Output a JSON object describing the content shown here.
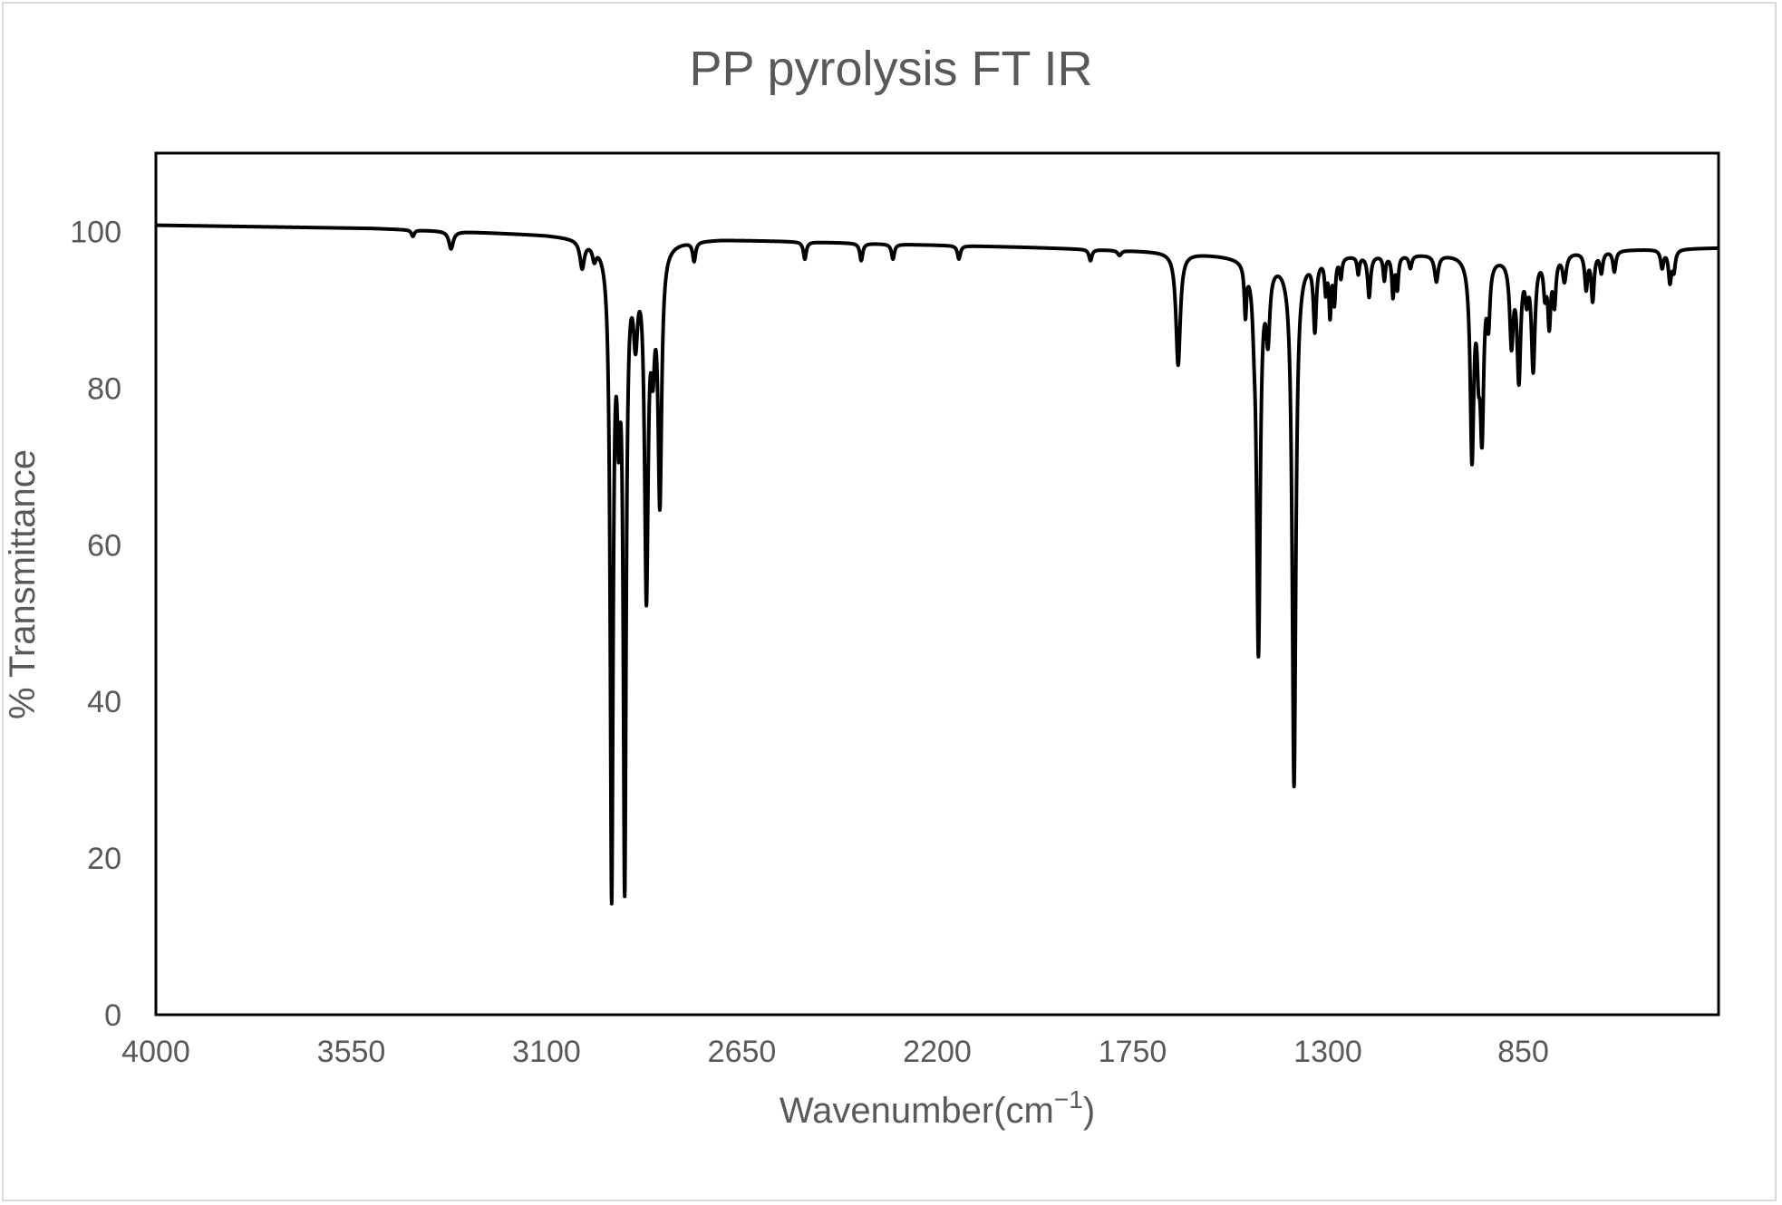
{
  "chart_data": {
    "type": "line",
    "title": "PP pyrolysis FT IR",
    "xlabel": "Wavenumber(cm",
    "xlabel_sup": "−1",
    "xlabel_close": ")",
    "ylabel": "% Transmittance",
    "xlim": [
      4000,
      400
    ],
    "ylim": [
      0,
      110
    ],
    "x_reversed": true,
    "x_ticks": [
      4000,
      3550,
      3100,
      2650,
      2200,
      1750,
      1300,
      850
    ],
    "x_tick_labels": [
      "4000",
      "3550",
      "3100",
      "2650",
      "2200",
      "1750",
      "1300",
      "850"
    ],
    "y_ticks": [
      0,
      20,
      40,
      60,
      80,
      100
    ],
    "y_tick_labels": [
      "0",
      "20",
      "40",
      "60",
      "80",
      "100"
    ],
    "grid": false,
    "line_color": "#000000",
    "baseline": [
      [
        4000,
        100.8
      ],
      [
        3500,
        100.4
      ],
      [
        3100,
        99.6
      ],
      [
        2900,
        98.8
      ],
      [
        2700,
        99.0
      ],
      [
        2300,
        98.4
      ],
      [
        2000,
        98.0
      ],
      [
        1650,
        97.4
      ],
      [
        1400,
        96.5
      ],
      [
        1300,
        97.0
      ],
      [
        1000,
        97.2
      ],
      [
        900,
        97.0
      ],
      [
        700,
        97.6
      ],
      [
        500,
        97.8
      ],
      [
        400,
        97.9
      ]
    ],
    "peaks": [
      {
        "x": 3408,
        "y": 99.4,
        "w": 4
      },
      {
        "x": 3320,
        "y": 97.8,
        "w": 6
      },
      {
        "x": 3018,
        "y": 95.8,
        "w": 6
      },
      {
        "x": 2990,
        "y": 97.4,
        "w": 5
      },
      {
        "x": 2950,
        "y": 17.0,
        "w": 4
      },
      {
        "x": 2934,
        "y": 82.0,
        "w": 4
      },
      {
        "x": 2920,
        "y": 19.0,
        "w": 4
      },
      {
        "x": 2895,
        "y": 89.0,
        "w": 6
      },
      {
        "x": 2870,
        "y": 55.5,
        "w": 5
      },
      {
        "x": 2855,
        "y": 87.5,
        "w": 5
      },
      {
        "x": 2839,
        "y": 67.0,
        "w": 5
      },
      {
        "x": 2760,
        "y": 96.5,
        "w": 4
      },
      {
        "x": 2505,
        "y": 96.5,
        "w": 4
      },
      {
        "x": 2375,
        "y": 96.3,
        "w": 4
      },
      {
        "x": 2302,
        "y": 96.5,
        "w": 4
      },
      {
        "x": 2150,
        "y": 96.5,
        "w": 4
      },
      {
        "x": 1847,
        "y": 96.3,
        "w": 4
      },
      {
        "x": 1780,
        "y": 97.0,
        "w": 5
      },
      {
        "x": 1645,
        "y": 83.0,
        "w": 6
      },
      {
        "x": 1490,
        "y": 90.5,
        "w": 3
      },
      {
        "x": 1470,
        "y": 93.0,
        "w": 4
      },
      {
        "x": 1460,
        "y": 47.0,
        "w": 5
      },
      {
        "x": 1438,
        "y": 88.0,
        "w": 5
      },
      {
        "x": 1378,
        "y": 29.5,
        "w": 5
      },
      {
        "x": 1330,
        "y": 88.0,
        "w": 4
      },
      {
        "x": 1305,
        "y": 93.0,
        "w": 3
      },
      {
        "x": 1295,
        "y": 90.0,
        "w": 3
      },
      {
        "x": 1285,
        "y": 91.5,
        "w": 3
      },
      {
        "x": 1270,
        "y": 94.5,
        "w": 3
      },
      {
        "x": 1230,
        "y": 94.8,
        "w": 3
      },
      {
        "x": 1205,
        "y": 91.8,
        "w": 4
      },
      {
        "x": 1170,
        "y": 94.0,
        "w": 3
      },
      {
        "x": 1150,
        "y": 92.0,
        "w": 3
      },
      {
        "x": 1140,
        "y": 93.0,
        "w": 3
      },
      {
        "x": 1110,
        "y": 95.5,
        "w": 4
      },
      {
        "x": 1050,
        "y": 93.8,
        "w": 5
      },
      {
        "x": 968,
        "y": 72.0,
        "w": 5
      },
      {
        "x": 953,
        "y": 88.0,
        "w": 4
      },
      {
        "x": 945,
        "y": 76.0,
        "w": 5
      },
      {
        "x": 930,
        "y": 90.0,
        "w": 4
      },
      {
        "x": 877,
        "y": 86.5,
        "w": 5
      },
      {
        "x": 860,
        "y": 82.0,
        "w": 5
      },
      {
        "x": 842,
        "y": 93.0,
        "w": 4
      },
      {
        "x": 827,
        "y": 83.0,
        "w": 5
      },
      {
        "x": 800,
        "y": 93.0,
        "w": 4
      },
      {
        "x": 790,
        "y": 89.0,
        "w": 4
      },
      {
        "x": 778,
        "y": 91.5,
        "w": 4
      },
      {
        "x": 755,
        "y": 94.0,
        "w": 5
      },
      {
        "x": 705,
        "y": 93.0,
        "w": 4
      },
      {
        "x": 690,
        "y": 91.5,
        "w": 4
      },
      {
        "x": 670,
        "y": 95.0,
        "w": 4
      },
      {
        "x": 640,
        "y": 95.0,
        "w": 4
      },
      {
        "x": 530,
        "y": 95.5,
        "w": 4
      },
      {
        "x": 512,
        "y": 93.8,
        "w": 4
      },
      {
        "x": 503,
        "y": 95.3,
        "w": 4
      }
    ]
  }
}
